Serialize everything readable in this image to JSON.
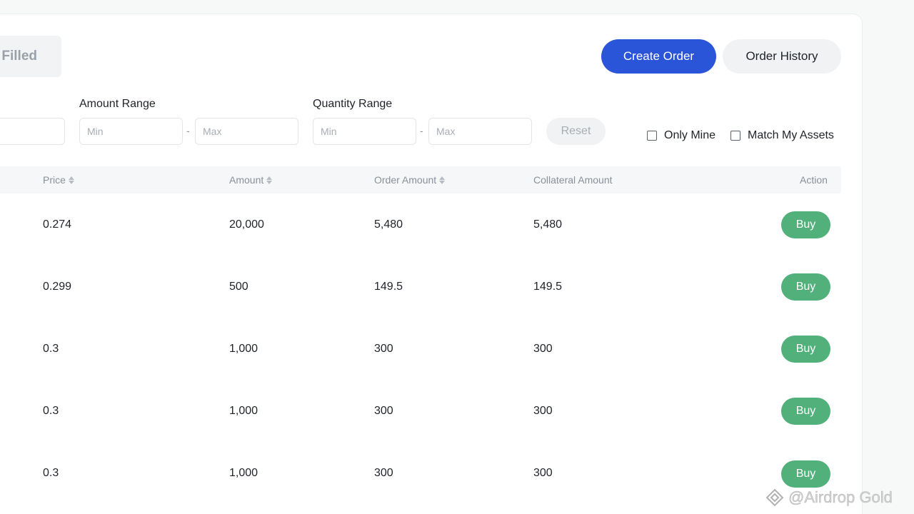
{
  "tabs": {
    "filled_label": "Filled"
  },
  "header": {
    "create_order_label": "Create Order",
    "order_history_label": "Order History"
  },
  "filters": {
    "amount_range_label": "Amount Range",
    "quantity_range_label": "Quantity Range",
    "min_placeholder": "Min",
    "max_placeholder": "Max",
    "dash": "-",
    "reset_label": "Reset",
    "only_mine_label": "Only Mine",
    "match_my_assets_label": "Match My Assets"
  },
  "table": {
    "columns": [
      "Price",
      "Amount",
      "Order Amount",
      "Collateral Amount",
      "Action"
    ],
    "rows": [
      {
        "price": "0.274",
        "amount": "20,000",
        "order_amount": "5,480",
        "collateral_amount": "5,480",
        "action": "Buy"
      },
      {
        "price": "0.299",
        "amount": "500",
        "order_amount": "149.5",
        "collateral_amount": "149.5",
        "action": "Buy"
      },
      {
        "price": "0.3",
        "amount": "1,000",
        "order_amount": "300",
        "collateral_amount": "300",
        "action": "Buy"
      },
      {
        "price": "0.3",
        "amount": "1,000",
        "order_amount": "300",
        "collateral_amount": "300",
        "action": "Buy"
      },
      {
        "price": "0.3",
        "amount": "1,000",
        "order_amount": "300",
        "collateral_amount": "300",
        "action": "Buy"
      }
    ]
  },
  "watermark": {
    "text": "@Airdrop Gold"
  },
  "colors": {
    "primary": "#2a55d8",
    "buy": "#52b07a",
    "muted": "#8a9099"
  }
}
